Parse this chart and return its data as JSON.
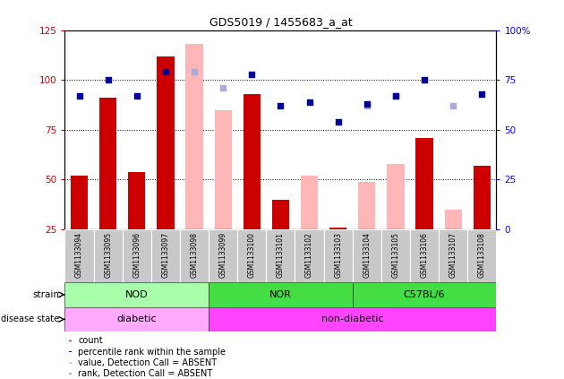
{
  "title": "GDS5019 / 1455683_a_at",
  "samples": [
    "GSM1133094",
    "GSM1133095",
    "GSM1133096",
    "GSM1133097",
    "GSM1133098",
    "GSM1133099",
    "GSM1133100",
    "GSM1133101",
    "GSM1133102",
    "GSM1133103",
    "GSM1133104",
    "GSM1133105",
    "GSM1133106",
    "GSM1133107",
    "GSM1133108"
  ],
  "count_values": [
    52,
    91,
    54,
    112,
    null,
    null,
    93,
    40,
    null,
    26,
    null,
    null,
    71,
    null,
    57
  ],
  "percentile_values": [
    67,
    75,
    67,
    79,
    null,
    null,
    78,
    62,
    64,
    54,
    63,
    67,
    75,
    null,
    68
  ],
  "absent_value_values": [
    null,
    null,
    null,
    null,
    118,
    85,
    null,
    null,
    52,
    null,
    49,
    58,
    null,
    35,
    null
  ],
  "absent_rank_values": [
    null,
    null,
    null,
    null,
    79,
    71,
    null,
    null,
    null,
    null,
    62,
    67,
    null,
    62,
    null
  ],
  "ylim_left": [
    25,
    125
  ],
  "ylim_right": [
    0,
    100
  ],
  "yticks_left": [
    25,
    50,
    75,
    100,
    125
  ],
  "ytick_labels_left": [
    "25",
    "50",
    "75",
    "100",
    "125"
  ],
  "yticks_right": [
    0,
    25,
    50,
    75,
    100
  ],
  "ytick_labels_right": [
    "0",
    "25",
    "50",
    "75",
    "100%"
  ],
  "grid_values": [
    50,
    75,
    100
  ],
  "bar_color_count": "#CC0000",
  "bar_color_absent": "#FFB6B6",
  "dot_color_percentile": "#000099",
  "dot_color_absent_rank": "#AAAADD",
  "strain_data": [
    {
      "label": "NOD",
      "start": 0,
      "end": 4,
      "color": "#AAFFAA"
    },
    {
      "label": "NOR",
      "start": 5,
      "end": 9,
      "color": "#44DD44"
    },
    {
      "label": "C57BL/6",
      "start": 10,
      "end": 14,
      "color": "#44DD44"
    }
  ],
  "disease_data": [
    {
      "label": "diabetic",
      "start": 0,
      "end": 4,
      "color": "#FFAAFF"
    },
    {
      "label": "non-diabetic",
      "start": 5,
      "end": 14,
      "color": "#FF44FF"
    }
  ],
  "legend_items": [
    {
      "label": "count",
      "color": "#CC0000"
    },
    {
      "label": "percentile rank within the sample",
      "color": "#000099"
    },
    {
      "label": "value, Detection Call = ABSENT",
      "color": "#FFB6B6"
    },
    {
      "label": "rank, Detection Call = ABSENT",
      "color": "#AAAADD"
    }
  ],
  "bar_width": 0.6,
  "dot_size": 25
}
